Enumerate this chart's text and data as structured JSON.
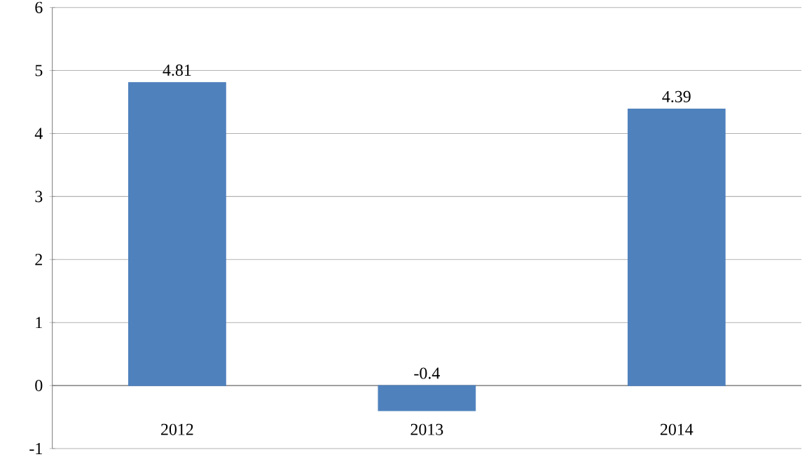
{
  "chart_data": {
    "type": "bar",
    "categories": [
      "2012",
      "2013",
      "2014"
    ],
    "values": [
      4.81,
      -0.4,
      4.39
    ],
    "color": "#4f81bd",
    "ylim": [
      -1,
      6
    ],
    "yticks": [
      -1,
      0,
      1,
      2,
      3,
      4,
      5,
      6
    ],
    "grid": "y",
    "data_labels": true
  }
}
